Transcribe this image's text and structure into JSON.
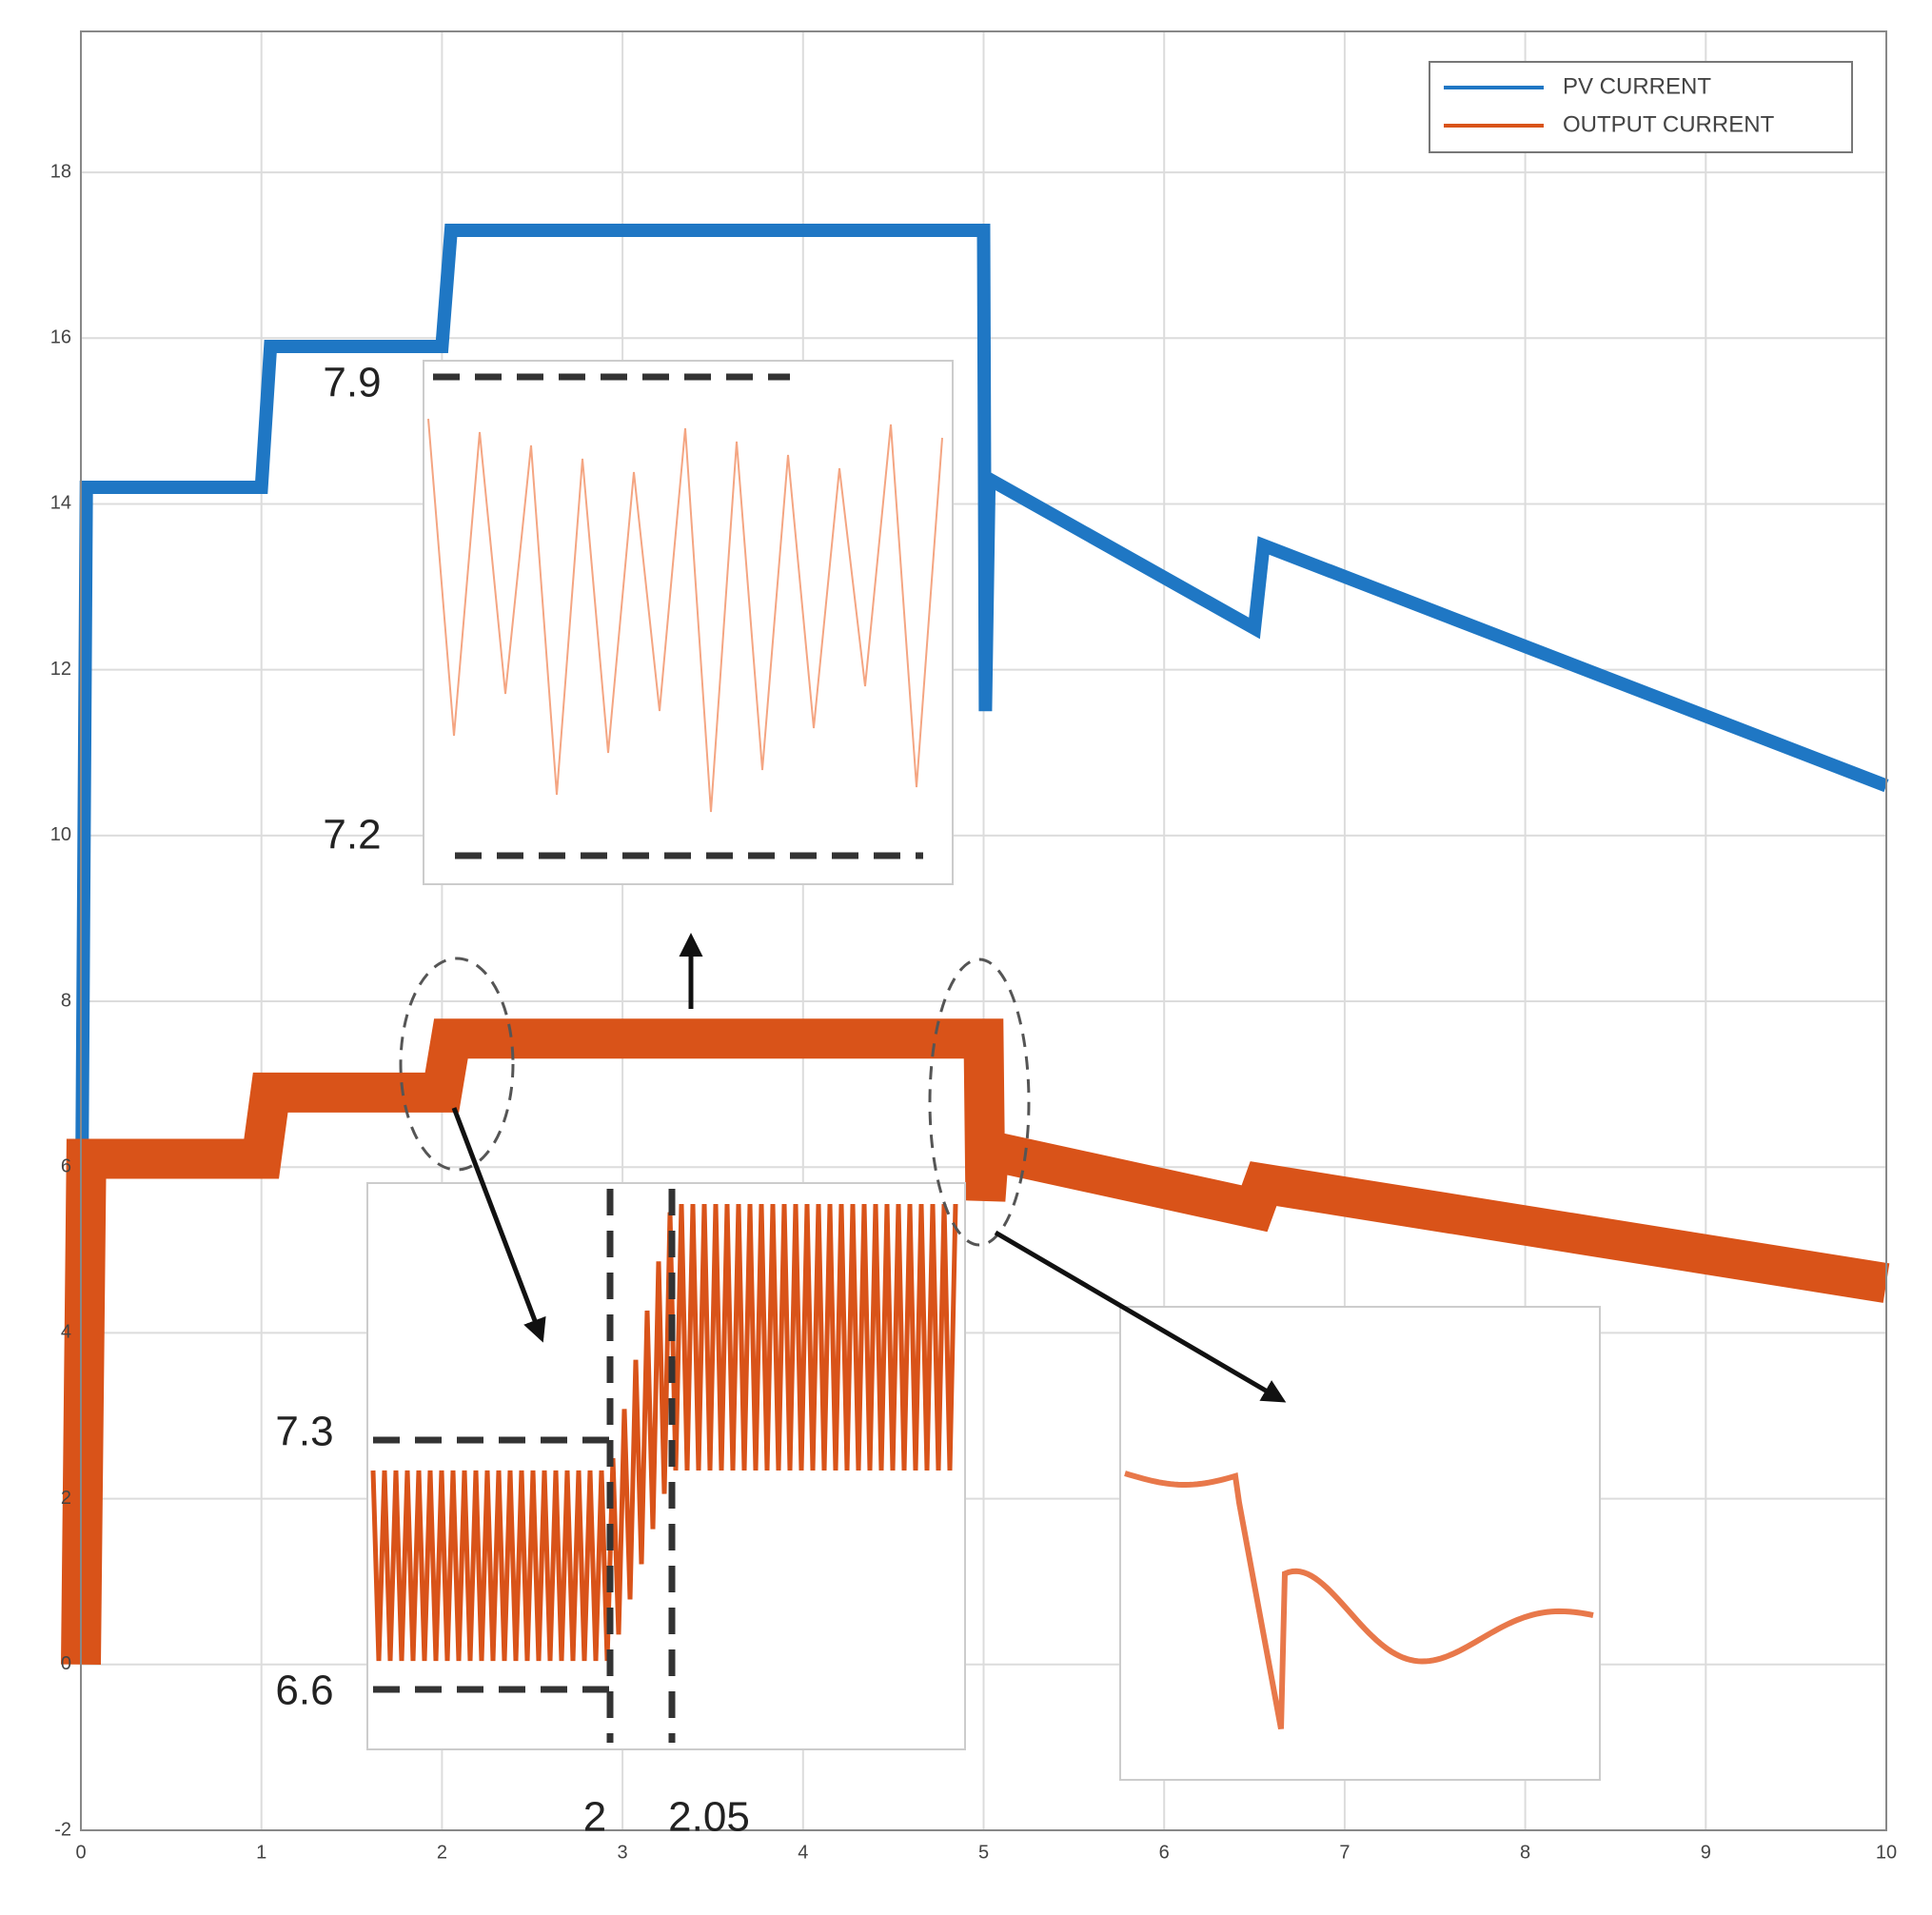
{
  "chart_data": {
    "type": "line",
    "x": [
      0,
      0.03,
      1,
      1.05,
      2,
      2.05,
      5,
      5.01,
      5.03,
      6.5,
      6.55,
      10
    ],
    "series": [
      {
        "name": "PV CURRENT",
        "color": "#1f77c4",
        "values": [
          4,
          14.2,
          14.2,
          15.9,
          15.9,
          17.3,
          17.3,
          11.5,
          14.3,
          12.5,
          13.5,
          10.6
        ]
      },
      {
        "name": "OUTPUT CURRENT",
        "color": "#d95319",
        "values": [
          0,
          6.1,
          6.1,
          6.9,
          6.9,
          7.55,
          7.55,
          5.6,
          6.2,
          5.5,
          5.8,
          4.6
        ]
      }
    ],
    "xlim": [
      0,
      10
    ],
    "xticks": [
      0,
      1,
      2,
      3,
      4,
      5,
      6,
      7,
      8,
      9,
      10
    ],
    "ylim": [
      -2,
      19.7
    ],
    "yticks": [
      -2,
      0,
      2,
      4,
      6,
      8,
      10,
      12,
      14,
      16,
      18
    ],
    "grid": true,
    "annotations": [
      "7.9",
      "7.2",
      "7.3",
      "6.6",
      "2",
      "2.05"
    ]
  }
}
